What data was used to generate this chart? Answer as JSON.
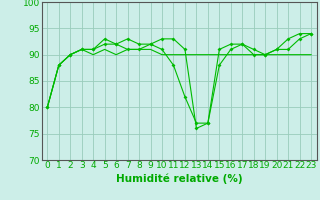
{
  "x": [
    0,
    1,
    2,
    3,
    4,
    5,
    6,
    7,
    8,
    9,
    10,
    11,
    12,
    13,
    14,
    15,
    16,
    17,
    18,
    19,
    20,
    21,
    22,
    23
  ],
  "line1": [
    80,
    88,
    90,
    91,
    90,
    91,
    90,
    91,
    91,
    91,
    90,
    90,
    90,
    90,
    90,
    90,
    90,
    90,
    90,
    90,
    90,
    90,
    90,
    90
  ],
  "line2": [
    80,
    88,
    90,
    91,
    91,
    92,
    92,
    91,
    91,
    92,
    91,
    88,
    82,
    77,
    77,
    88,
    91,
    92,
    91,
    90,
    91,
    91,
    93,
    94
  ],
  "line3": [
    80,
    88,
    90,
    91,
    91,
    93,
    92,
    93,
    92,
    92,
    93,
    93,
    91,
    76,
    77,
    91,
    92,
    92,
    90,
    90,
    91,
    93,
    94,
    94
  ],
  "xlabel": "Humidité relative (%)",
  "ylim": [
    70,
    100
  ],
  "xlim_min": -0.5,
  "xlim_max": 23.5,
  "yticks": [
    70,
    75,
    80,
    85,
    90,
    95,
    100
  ],
  "xticks": [
    0,
    1,
    2,
    3,
    4,
    5,
    6,
    7,
    8,
    9,
    10,
    11,
    12,
    13,
    14,
    15,
    16,
    17,
    18,
    19,
    20,
    21,
    22,
    23
  ],
  "line_color": "#00bb00",
  "bg_color": "#cceee8",
  "grid_color": "#99ccbb",
  "tick_color": "#00aa00",
  "xlabel_color": "#00aa00",
  "xlabel_fontsize": 7.5,
  "tick_fontsize": 6.5
}
